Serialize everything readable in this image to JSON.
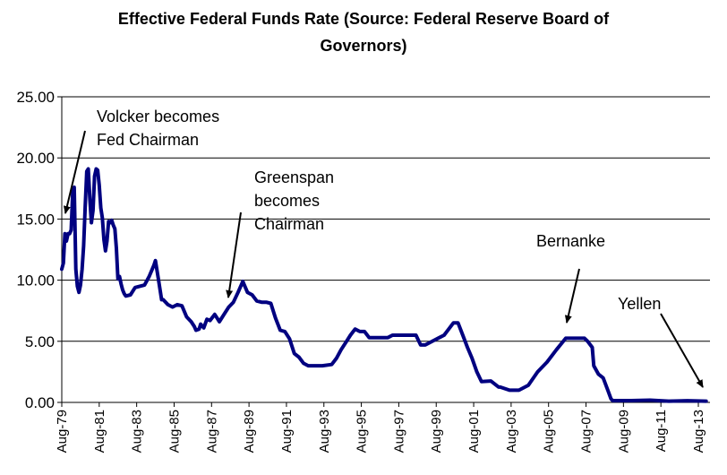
{
  "chart_data": {
    "type": "line",
    "title": "Effective Federal Funds Rate (Source: Federal Reserve Board of Governors)",
    "title_lines": [
      "Effective Federal Funds Rate (Source: Federal Reserve Board of",
      "Governors)"
    ],
    "xlabel": "",
    "ylabel": "",
    "ylim": [
      0,
      25
    ],
    "xlim": [
      1979.583,
      1984.0
    ],
    "yticks": [
      0,
      5,
      10,
      15,
      20,
      25
    ],
    "ytick_labels": [
      "0.00",
      "5.00",
      "10.00",
      "15.00",
      "20.00",
      "25.00"
    ],
    "xticks": [
      1979.583,
      1981.583,
      1983.583,
      1985.583,
      1987.583,
      1989.583,
      1991.583,
      1993.583,
      1995.583,
      1997.583,
      1999.583,
      2001.583,
      2003.583,
      2005.583,
      2007.583,
      2009.583,
      2011.583,
      2013.583
    ],
    "xtick_labels": [
      "Aug-79",
      "Aug-81",
      "Aug-83",
      "Aug-85",
      "Aug-87",
      "Aug-89",
      "Aug-91",
      "Aug-93",
      "Aug-95",
      "Aug-97",
      "Aug-99",
      "Aug-01",
      "Aug-03",
      "Aug-05",
      "Aug-07",
      "Aug-09",
      "Aug-11",
      "Aug-13"
    ],
    "grid": "horizontal",
    "legend": "none",
    "series": [
      {
        "name": "Effective Federal Funds Rate",
        "color": "#000080",
        "x": [
          1979.583,
          1979.667,
          1979.75,
          1979.833,
          1979.917,
          1980.0,
          1980.083,
          1980.167,
          1980.25,
          1980.333,
          1980.417,
          1980.5,
          1980.583,
          1980.667,
          1980.75,
          1980.833,
          1980.917,
          1981.0,
          1981.083,
          1981.167,
          1981.25,
          1981.333,
          1981.417,
          1981.5,
          1981.583,
          1981.667,
          1981.75,
          1981.833,
          1981.917,
          1982.0,
          1982.083,
          1982.167,
          1982.25,
          1982.333,
          1982.417,
          1982.5,
          1982.583,
          1982.667,
          1982.75,
          1982.833,
          1982.917,
          1983.0,
          1983.25,
          1983.5,
          1983.75,
          1984.0,
          1984.25,
          1984.5,
          1984.583,
          1984.75,
          1984.917,
          1985.0,
          1985.25,
          1985.5,
          1985.75,
          1986.0,
          1986.25,
          1986.5,
          1986.667,
          1986.75,
          1986.917,
          1987.0,
          1987.167,
          1987.333,
          1987.5,
          1987.75,
          1987.917,
          1988.0,
          1988.25,
          1988.5,
          1988.75,
          1989.0,
          1989.25,
          1989.5,
          1989.75,
          1990.0,
          1990.25,
          1990.5,
          1990.75,
          1991.0,
          1991.25,
          1991.5,
          1991.75,
          1992.0,
          1992.25,
          1992.5,
          1992.75,
          1993.0,
          1993.5,
          1994.0,
          1994.25,
          1994.5,
          1994.75,
          1995.0,
          1995.25,
          1995.5,
          1995.75,
          1996.0,
          1996.5,
          1997.0,
          1997.25,
          1997.5,
          1998.0,
          1998.5,
          1998.75,
          1999.0,
          1999.5,
          1999.75,
          2000.0,
          2000.25,
          2000.5,
          2000.75,
          2001.0,
          2001.25,
          2001.5,
          2001.75,
          2002.0,
          2002.5,
          2002.917,
          2003.0,
          2003.5,
          2004.0,
          2004.5,
          2005.0,
          2005.5,
          2006.0,
          2006.5,
          2007.0,
          2007.5,
          2007.667,
          2007.917,
          2008.0,
          2008.25,
          2008.5,
          2008.75,
          2008.917,
          2009.0,
          2010.0,
          2011.0,
          2012.0,
          2013.0,
          2014.0
        ],
        "y": [
          10.9,
          11.4,
          13.8,
          13.2,
          13.8,
          13.8,
          14.1,
          17.2,
          17.6,
          10.9,
          9.5,
          9.0,
          9.6,
          10.9,
          12.8,
          15.9,
          18.9,
          19.1,
          16.6,
          14.7,
          15.7,
          18.5,
          19.1,
          19.0,
          17.8,
          15.9,
          15.1,
          13.3,
          12.4,
          13.2,
          14.8,
          14.7,
          14.9,
          14.5,
          14.2,
          12.6,
          10.1,
          10.3,
          9.7,
          9.2,
          8.9,
          8.7,
          8.8,
          9.4,
          9.5,
          9.6,
          10.3,
          11.2,
          11.6,
          10.0,
          8.4,
          8.4,
          8.0,
          7.8,
          8.0,
          7.9,
          7.0,
          6.6,
          6.2,
          5.9,
          6.0,
          6.4,
          6.1,
          6.8,
          6.7,
          7.2,
          6.8,
          6.6,
          7.2,
          7.8,
          8.2,
          9.0,
          9.9,
          9.0,
          8.8,
          8.3,
          8.2,
          8.2,
          8.1,
          6.9,
          5.9,
          5.8,
          5.2,
          4.0,
          3.7,
          3.2,
          3.0,
          3.0,
          3.0,
          3.1,
          3.6,
          4.3,
          4.9,
          5.5,
          6.0,
          5.8,
          5.8,
          5.3,
          5.3,
          5.3,
          5.5,
          5.5,
          5.5,
          5.5,
          4.7,
          4.7,
          5.1,
          5.3,
          5.5,
          6.0,
          6.5,
          6.5,
          5.5,
          4.5,
          3.6,
          2.5,
          1.7,
          1.75,
          1.25,
          1.25,
          1.0,
          1.0,
          1.4,
          2.5,
          3.3,
          4.3,
          5.25,
          5.25,
          5.25,
          5.0,
          4.5,
          3.0,
          2.3,
          2.0,
          1.0,
          0.3,
          0.15,
          0.15,
          0.18,
          0.1,
          0.14,
          0.1
        ]
      }
    ],
    "annotations": [
      {
        "lines": [
          "Volcker becomes",
          "Fed Chairman"
        ],
        "points_to": "Aug-79",
        "target_value": 15.0
      },
      {
        "lines": [
          "Greenspan",
          "becomes",
          "Chairman"
        ],
        "points_to": "Aug-87",
        "target_value": 8.0
      },
      {
        "lines": [
          "Bernanke"
        ],
        "points_to": "Feb-06",
        "target_value": 6.5
      },
      {
        "lines": [
          "Yellen"
        ],
        "points_to": "Feb-14",
        "target_value": 0.1
      }
    ]
  }
}
